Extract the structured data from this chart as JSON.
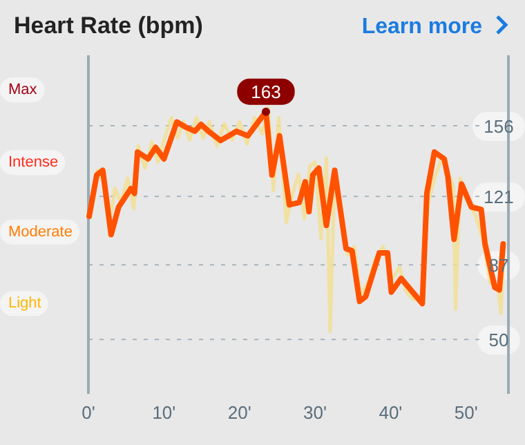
{
  "chart_data": {
    "type": "line",
    "title": "Heart Rate (bpm)",
    "annotations": [
      "Max",
      "Intense",
      "Moderate",
      "Light",
      "Learn more",
      {
        "text": "163",
        "x": 23.5,
        "y": 163
      }
    ],
    "xlim": [
      0,
      55.6
    ],
    "ylim": [
      23,
      191
    ],
    "xticks": [
      {
        "value": 0,
        "label": "0'"
      },
      {
        "value": 10,
        "label": "10'"
      },
      {
        "value": 20,
        "label": "20'"
      },
      {
        "value": 30,
        "label": "30'"
      },
      {
        "value": 40,
        "label": "40'"
      },
      {
        "value": 50,
        "label": "50'"
      }
    ],
    "yticks": [
      50,
      87,
      121,
      156
    ],
    "grid": "y",
    "line_style": "solid",
    "marker": "none",
    "series": [
      {
        "color": "#f2df8e",
        "x": [
          0.1,
          1.2,
          2.0,
          2.8,
          3.5,
          4.3,
          5.2,
          6.0,
          6.6,
          7.5,
          8.4,
          9.2,
          10.1,
          11.0,
          11.8,
          12.6,
          13.4,
          14.3,
          15.2,
          16.0,
          17.0,
          18.0,
          19.0,
          20.0,
          21.0,
          22.0,
          23.0,
          23.8,
          24.5,
          25.2,
          26.2,
          27.0,
          27.8,
          28.6,
          29.3,
          30.0,
          30.8,
          31.5,
          32.0,
          32.6,
          33.5,
          34.3,
          35.2,
          36.0,
          37.0,
          38.0,
          39.0,
          40.2,
          41.2,
          42.0,
          43.0,
          44.2,
          45.0,
          45.8,
          46.8,
          47.6,
          48.3,
          48.6,
          49.2,
          50.2,
          51.2,
          52.2,
          53.2,
          54.2,
          54.6,
          55.0
        ],
        "values": [
          112,
          134,
          128,
          108,
          125,
          118,
          130,
          115,
          146,
          135,
          148,
          138,
          150,
          160,
          150,
          158,
          149,
          160,
          150,
          158,
          146,
          157,
          149,
          158,
          147,
          160,
          152,
          165,
          124,
          160,
          108,
          122,
          132,
          110,
          136,
          138,
          100,
          140,
          54,
          132,
          110,
          92,
          96,
          72,
          78,
          90,
          96,
          80,
          86,
          74,
          70,
          70,
          118,
          130,
          140,
          133,
          126,
          65,
          130,
          118,
          112,
          100,
          78,
          76,
          63,
          95
        ]
      },
      {
        "color": "#ff5200",
        "x": [
          0.1,
          1.1,
          1.9,
          3.0,
          4.0,
          5.6,
          6.1,
          6.5,
          7.9,
          8.9,
          10.0,
          11.7,
          12.8,
          14.1,
          14.9,
          15.9,
          17.5,
          19.6,
          21.1,
          23.5,
          24.3,
          25.3,
          26.6,
          27.9,
          28.7,
          29.2,
          29.7,
          30.5,
          31.5,
          32.6,
          33.3,
          34.1,
          34.9,
          35.9,
          36.7,
          38.5,
          39.6,
          40.1,
          41.4,
          44.2,
          44.8,
          45.8,
          47.1,
          47.6,
          48.4,
          49.4,
          50.7,
          52.0,
          52.5,
          53.8,
          54.4,
          54.9
        ],
        "values": [
          111.1,
          131.6,
          133.9,
          102.0,
          115.7,
          124.8,
          122.5,
          143.0,
          139.6,
          145.3,
          139.6,
          157.9,
          155.5,
          153.3,
          156.7,
          153.3,
          148.7,
          153.3,
          151.0,
          163,
          131.6,
          151.0,
          116.8,
          117.9,
          128.2,
          113.4,
          131.6,
          135.0,
          106.6,
          133.9,
          115.7,
          95.1,
          94.0,
          68.9,
          71.2,
          92.9,
          92.9,
          73.5,
          80.3,
          67.8,
          122.5,
          143.0,
          139.6,
          130.5,
          99.7,
          127.1,
          115.7,
          114.5,
          97.4,
          75.8,
          74.6,
          97.4
        ]
      }
    ]
  }
}
